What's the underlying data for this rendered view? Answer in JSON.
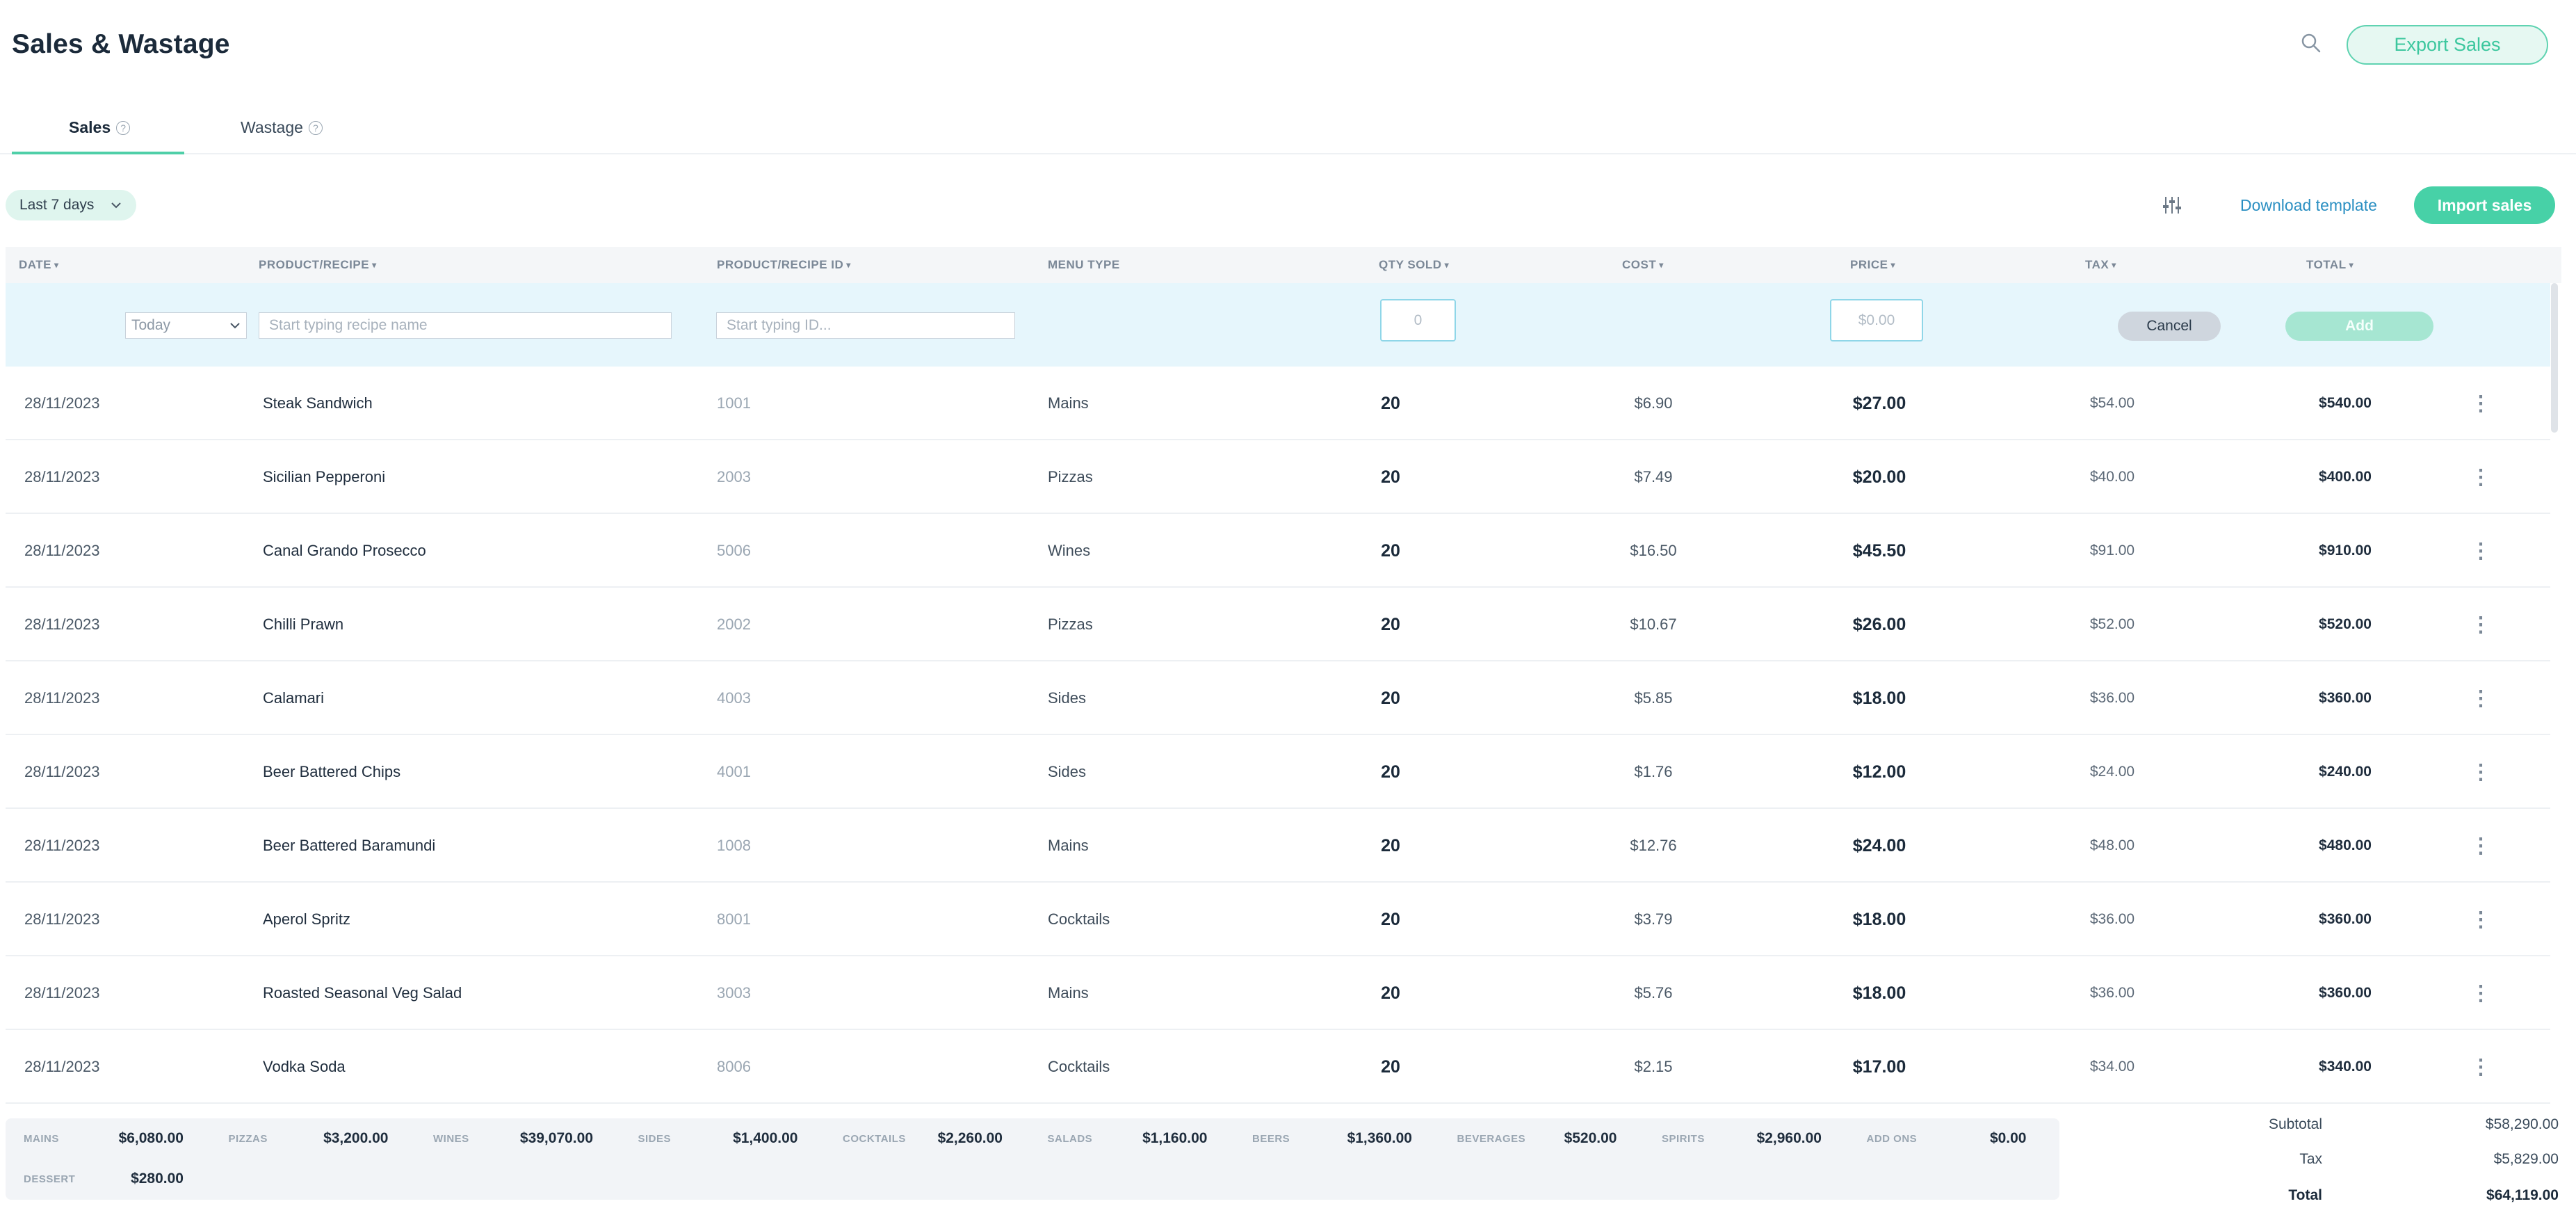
{
  "header": {
    "title": "Sales & Wastage",
    "export_label": "Export Sales",
    "search_icon": "search-icon"
  },
  "tabs": [
    {
      "label": "Sales",
      "active": true
    },
    {
      "label": "Wastage",
      "active": false
    }
  ],
  "toolbar": {
    "range_label": "Last 7 days",
    "download_label": "Download template",
    "import_label": "Import sales"
  },
  "columns": [
    "DATE",
    "PRODUCT/RECIPE",
    "PRODUCT/RECIPE ID",
    "MENU TYPE",
    "QTY SOLD",
    "COST",
    "PRICE",
    "TAX",
    "TOTAL"
  ],
  "add_row": {
    "date_value": "Today",
    "name_placeholder": "Start typing recipe name",
    "id_placeholder": "Start typing ID...",
    "qty_placeholder": "0",
    "price_placeholder": "$0.00",
    "cancel_label": "Cancel",
    "add_label": "Add"
  },
  "rows": [
    {
      "date": "28/11/2023",
      "name": "Steak Sandwich",
      "id": "1001",
      "menu": "Mains",
      "qty": "20",
      "cost": "$6.90",
      "price": "$27.00",
      "tax": "$54.00",
      "total": "$540.00"
    },
    {
      "date": "28/11/2023",
      "name": "Sicilian Pepperoni",
      "id": "2003",
      "menu": "Pizzas",
      "qty": "20",
      "cost": "$7.49",
      "price": "$20.00",
      "tax": "$40.00",
      "total": "$400.00"
    },
    {
      "date": "28/11/2023",
      "name": "Canal Grando Prosecco",
      "id": "5006",
      "menu": "Wines",
      "qty": "20",
      "cost": "$16.50",
      "price": "$45.50",
      "tax": "$91.00",
      "total": "$910.00"
    },
    {
      "date": "28/11/2023",
      "name": "Chilli Prawn",
      "id": "2002",
      "menu": "Pizzas",
      "qty": "20",
      "cost": "$10.67",
      "price": "$26.00",
      "tax": "$52.00",
      "total": "$520.00"
    },
    {
      "date": "28/11/2023",
      "name": "Calamari",
      "id": "4003",
      "menu": "Sides",
      "qty": "20",
      "cost": "$5.85",
      "price": "$18.00",
      "tax": "$36.00",
      "total": "$360.00"
    },
    {
      "date": "28/11/2023",
      "name": "Beer Battered Chips",
      "id": "4001",
      "menu": "Sides",
      "qty": "20",
      "cost": "$1.76",
      "price": "$12.00",
      "tax": "$24.00",
      "total": "$240.00"
    },
    {
      "date": "28/11/2023",
      "name": "Beer Battered Baramundi",
      "id": "1008",
      "menu": "Mains",
      "qty": "20",
      "cost": "$12.76",
      "price": "$24.00",
      "tax": "$48.00",
      "total": "$480.00"
    },
    {
      "date": "28/11/2023",
      "name": "Aperol Spritz",
      "id": "8001",
      "menu": "Cocktails",
      "qty": "20",
      "cost": "$3.79",
      "price": "$18.00",
      "tax": "$36.00",
      "total": "$360.00"
    },
    {
      "date": "28/11/2023",
      "name": "Roasted Seasonal Veg Salad",
      "id": "3003",
      "menu": "Mains",
      "qty": "20",
      "cost": "$5.76",
      "price": "$18.00",
      "tax": "$36.00",
      "total": "$360.00"
    },
    {
      "date": "28/11/2023",
      "name": "Vodka Soda",
      "id": "8006",
      "menu": "Cocktails",
      "qty": "20",
      "cost": "$2.15",
      "price": "$17.00",
      "tax": "$34.00",
      "total": "$340.00"
    }
  ],
  "categories": [
    {
      "label": "MAINS",
      "value": "$6,080.00"
    },
    {
      "label": "PIZZAS",
      "value": "$3,200.00"
    },
    {
      "label": "WINES",
      "value": "$39,070.00"
    },
    {
      "label": "SIDES",
      "value": "$1,400.00"
    },
    {
      "label": "COCKTAILS",
      "value": "$2,260.00"
    },
    {
      "label": "SALADS",
      "value": "$1,160.00"
    },
    {
      "label": "BEERS",
      "value": "$1,360.00"
    },
    {
      "label": "BEVERAGES",
      "value": "$520.00"
    },
    {
      "label": "SPIRITS",
      "value": "$2,960.00"
    },
    {
      "label": "ADD ONS",
      "value": "$0.00"
    },
    {
      "label": "DESSERT",
      "value": "$280.00"
    }
  ],
  "totals": {
    "subtotal_label": "Subtotal",
    "subtotal": "$58,290.00",
    "tax_label": "Tax",
    "tax": "$5,829.00",
    "total_label": "Total",
    "total": "$64,119.00"
  }
}
